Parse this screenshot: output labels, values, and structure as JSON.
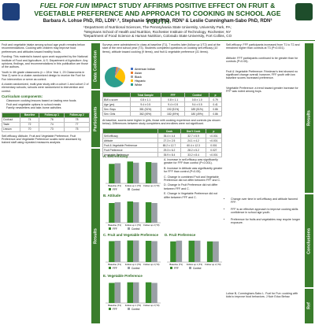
{
  "header": {
    "title_italic": "FUEL FOR FUN",
    "title_rest": " IMPACT STUDY AFFIRMS POSITIVE EFFECT ON FRUIT & VEGETABLE PREFERENCE AND APPROACH TO COOKING IN SCHOOL AGE YOUTH",
    "authors": "Barbara A. Lohse PhD, RD, LDN¹˒², Stephanie Smith PhD, RDN³ & Leslie Cunningham-Sabo PhD, RDN³",
    "affiliations": [
      "¹Department of Nutritional Sciences, The Pennsylvania State University, University Park, PA;",
      "²Wegmans School of Health and Nutrition, Rochester Institute of Technology, Rochester, NY",
      "³Department of Food Science & Human Nutrition, Colorado State University, Fort Collins, CO"
    ]
  },
  "left": {
    "paragraphs": [
      "Fruit and vegetable intake among school age youth remains below recommendations. Cooking with children may improve food preferences and attitudes toward healthy foods.",
      "Funding: This material is based upon work supported by the National Institute of Food and Agriculture, U.S. Department of Agriculture. Any opinions, findings, and recommendations in this publication are those of the authors.",
      "Youth in 4th grade classrooms (n = 28 in Year 1, 23 Classrooms in Year 2) were in a cluster-randomized design to receive the Fuel for Fun intervention or serve as control.",
      "A cluster-randomized, multi-year study with a cohort 1 and cohort 2 of elementary schools; schools were randomized to intervention and control."
    ],
    "heading": "Curriculum components:",
    "bullets": [
      "Classroom cooking lessons based on tasting new foods",
      "Fruit and vegetable options in school meals",
      "Family newsletters and take-home activities"
    ],
    "table": {
      "header": [
        "",
        "Baseline",
        "Follow-up 1",
        "Follow-up 2"
      ],
      "rows": [
        [
          "Cookout",
          "74",
          "76",
          "78"
        ],
        [
          "Taste",
          "72",
          "74",
          "77"
        ],
        [
          "Lesson",
          "70",
          "73",
          "75"
        ]
      ]
    },
    "closing": "Self-efficacy, Attitude, Fruit and Vegetable Preference, Fruit Preference and Vegetable Preference scales were assessed by trained staff using repeated measures analysis."
  },
  "middle": {
    "labels": [
      "Data Collection",
      "Participants",
      "Results"
    ],
    "data_text": "Surveys were administered in class at baseline (T1), 7 months later (follow up 1/T2) and at the start of the next school year (T3). Students completed questions on cooking self-efficacy (10 items), attitude toward cooking (9 items), and fruit & vegetable preference (31 items).",
    "pie": {
      "labels": [
        "American Indian",
        "Asian",
        "Black",
        "Hispanic",
        "White"
      ],
      "values": [
        2,
        3,
        4,
        26,
        65
      ],
      "colors": [
        "#4472c4",
        "#ed7d31",
        "#a5a5a5",
        "#ffc000",
        "#2e9e8e"
      ]
    },
    "demo": {
      "header": [
        "",
        "Total Sample",
        "FFF",
        "Control",
        "p"
      ],
      "rows": [
        [
          "BMI z-score",
          "0.8 ± 1.1",
          "0.8 ± 1.1",
          "0.8 ± 1.0",
          "0.79"
        ],
        [
          "Age (yrs)",
          "9.4 ± 0.5",
          "9.4 ± 0.5",
          "9.4 ± 0.5",
          "0.41"
        ],
        [
          "Sex: Boys",
          "381 (51%)",
          "192 (51%)",
          "189 (51%)",
          "0.86"
        ],
        [
          "Sex: Girls",
          "362 (49%)",
          "182 (49%)",
          "180 (49%)",
          "0.86"
        ]
      ]
    },
    "participants_text": "At baseline, scores were higher in girls, those with cooking experience and controls (as shown below). Differences between study completers and enrollees were not significant.",
    "results_table": {
      "header": [
        "",
        "Cook",
        "Don't Cook",
        "p"
      ],
      "rows": [
        [
          "Self-efficacy",
          "35.4 ± 4.4",
          "32.7 ± 5.9",
          "<0.001"
        ],
        [
          "Attitude",
          "27.3 ± 2.5",
          "24.1 ± 4.2",
          "<0.001"
        ],
        [
          "Fruit & Vegetable Preference",
          "65.2 ± 12.7",
          "60.4 ± 12.3",
          "0.001"
        ],
        [
          "Fruit Preference",
          "29.3 ± 6.2",
          "28.2 ± 5.2",
          "0.027"
        ],
        [
          "Vegetable Preference",
          "35.9 ± 8.4",
          "33.2 ± 8.4",
          "<0.001"
        ]
      ]
    },
    "notes": [
      "A. Increase in self-efficacy was significantly greater for FFF than control (P<0.001).",
      "B. Increase in Attitude was significantly greater for FFF than control (P<0.05).",
      "C. Change in combined Fruit and Vegetable Preference did not differ between FFF and C.",
      "D. Change in Fruit Preference did not differ between FFF and C.",
      "E. Change in Vegetable Preference did not differ between FFF and C."
    ]
  },
  "charts": {
    "categories": [
      "Baseline (T1)",
      "Follow up 1 (T2)",
      "Follow up 2 (T3)"
    ],
    "series_names": [
      "FFF",
      "Control"
    ],
    "colors": [
      "#3a8d2e",
      "#9aa0a6"
    ],
    "panels": [
      {
        "title": "A. Self-efficacy",
        "ylim": [
          0,
          40
        ],
        "values": [
          [
            33,
            37,
            36
          ],
          [
            34,
            35,
            35
          ]
        ]
      },
      {
        "title": "B. Attitude",
        "ylim": [
          0,
          30
        ],
        "values": [
          [
            25,
            27,
            26
          ],
          [
            26,
            26,
            25
          ]
        ]
      },
      {
        "title": "C. Fruit and Vegetable Preference",
        "ylim": [
          0,
          70
        ],
        "values": [
          [
            62,
            64,
            63
          ],
          [
            63,
            64,
            62
          ]
        ]
      },
      {
        "title": "D. Fruit Preference",
        "ylim": [
          0,
          32
        ],
        "values": [
          [
            28,
            29,
            28
          ],
          [
            29,
            29,
            28
          ]
        ]
      },
      {
        "title": "E. Vegetable Preference",
        "ylim": [
          0,
          40
        ],
        "values": [
          [
            34,
            35,
            35
          ],
          [
            35,
            35,
            34
          ]
        ]
      }
    ]
  },
  "right": {
    "labels": [
      "Results",
      "Conclusions",
      "Ref"
    ],
    "results": [
      "Self-efficacy: FFF participants increased from T1 to T2 and remained higher than controls at T3 (P<0.001).",
      "Attitude: FFF participants continued to be greater than for controls (P<0.05).",
      "Fruit & Vegetable Preference: Friedman's test showed no significant change overall; however, FFF youth with low baseline scores increased preference.",
      "Vegetable Preference: a trend toward greater increase for FFF was noted among boys."
    ],
    "conclusions": [
      "Change over time in self-efficacy and attitude favored FFF.",
      "FFF is an effective approach to improve cooking skills confidence in school age youth.",
      "Preference for fruits and vegetables may require longer exposure."
    ],
    "ref": "Lohse B, Cunningham-Sabo L. Fuel for Fun: cooking with kids to improve food behaviors. J Nutr Educ Behav."
  }
}
